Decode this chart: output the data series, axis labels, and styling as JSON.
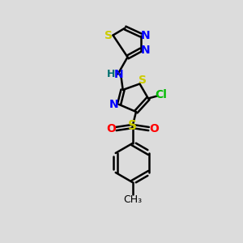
{
  "bg_color": "#dcdcdc",
  "bond_color": "#000000",
  "S_color": "#cccc00",
  "N_color": "#0000ff",
  "O_color": "#ff0000",
  "Cl_color": "#00bb00",
  "H_color": "#007070",
  "text_color": "#000000",
  "figsize": [
    3.0,
    3.0
  ],
  "dpi": 100,
  "xlim": [
    0,
    10
  ],
  "ylim": [
    0,
    10
  ]
}
